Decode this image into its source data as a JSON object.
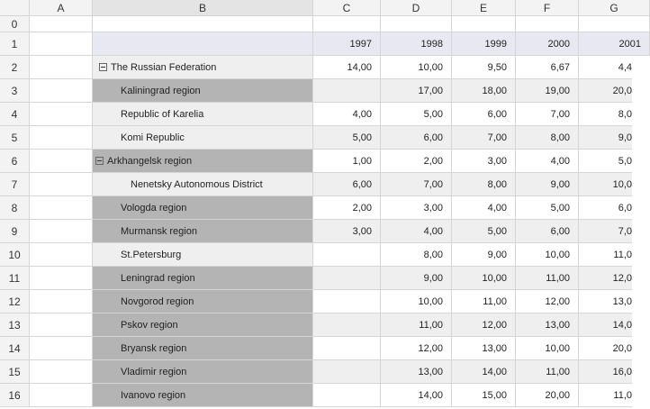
{
  "column_headers": [
    "A",
    "B",
    "C",
    "D",
    "E",
    "F",
    "G"
  ],
  "row_headers": [
    "0",
    "1",
    "2",
    "3",
    "4",
    "5",
    "6",
    "7",
    "8",
    "9",
    "10",
    "11",
    "12",
    "13",
    "14",
    "15",
    "16"
  ],
  "year_row": [
    "1997",
    "1998",
    "1999",
    "2000",
    "2001"
  ],
  "rows": [
    {
      "label": "The Russian Federation",
      "values": [
        "14,00",
        "10,00",
        "9,50",
        "6,67",
        "4,4"
      ]
    },
    {
      "label": "Kaliningrad region",
      "values": [
        null,
        "17,00",
        "18,00",
        "19,00",
        "20,0"
      ]
    },
    {
      "label": "Republic of Karelia",
      "values": [
        "4,00",
        "5,00",
        "6,00",
        "7,00",
        "8,0"
      ]
    },
    {
      "label": "Komi Republic",
      "values": [
        "5,00",
        "6,00",
        "7,00",
        "8,00",
        "9,0"
      ]
    },
    {
      "label": "Arkhangelsk region",
      "values": [
        "1,00",
        "2,00",
        "3,00",
        "4,00",
        "5,0"
      ]
    },
    {
      "label": "Nenetsky Autonomous District",
      "values": [
        "6,00",
        "7,00",
        "8,00",
        "9,00",
        "10,0"
      ]
    },
    {
      "label": "Vologda region",
      "values": [
        "2,00",
        "3,00",
        "4,00",
        "5,00",
        "6,0"
      ]
    },
    {
      "label": "Murmansk region",
      "values": [
        "3,00",
        "4,00",
        "5,00",
        "6,00",
        "7,0"
      ]
    },
    {
      "label": "St.Petersburg",
      "values": [
        null,
        "8,00",
        "9,00",
        "10,00",
        "11,0"
      ]
    },
    {
      "label": "Leningrad region",
      "values": [
        null,
        "9,00",
        "10,00",
        "11,00",
        "12,0"
      ]
    },
    {
      "label": "Novgorod region",
      "values": [
        null,
        "10,00",
        "11,00",
        "12,00",
        "13,0"
      ]
    },
    {
      "label": "Pskov region",
      "values": [
        null,
        "11,00",
        "12,00",
        "13,00",
        "14,0"
      ]
    },
    {
      "label": "Bryansk region",
      "values": [
        null,
        "12,00",
        "13,00",
        "10,00",
        "20,0"
      ]
    },
    {
      "label": "Vladimir region",
      "values": [
        null,
        "13,00",
        "14,00",
        "11,00",
        "16,0"
      ]
    },
    {
      "label": "Ivanovo region",
      "values": [
        null,
        "14,00",
        "15,00",
        "20,00",
        "11,0"
      ]
    }
  ]
}
